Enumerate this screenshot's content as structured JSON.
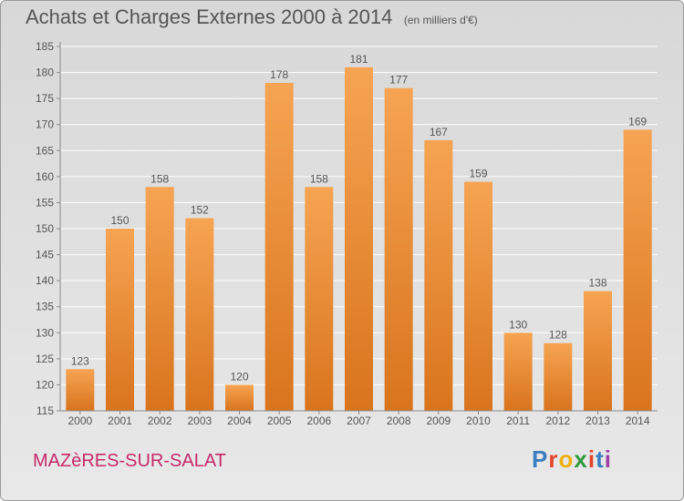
{
  "header": {
    "title": "Achats et Charges Externes 2000 à 2014",
    "unit": "(en milliers d'€)"
  },
  "footer": {
    "town": "MAZèRES-SUR-SALAT",
    "brand": "Proxiti",
    "brand_colors": [
      "#3a7fc1",
      "#e2452b",
      "#f0b114",
      "#2f9a3f",
      "#e2452b",
      "#3a7fc1",
      "#9c3fa6"
    ]
  },
  "colors": {
    "bar_light": "#f6a452",
    "bar_dark": "#d9741d",
    "axis": "#8a8a8a",
    "grid": "#ffffff",
    "text": "#555555"
  },
  "chart_data": {
    "type": "bar",
    "title": "Achats et Charges Externes 2000 à 2014",
    "subtitle": "(en milliers d'€)",
    "xlabel": "",
    "ylabel": "",
    "categories": [
      "2000",
      "2001",
      "2002",
      "2003",
      "2004",
      "2005",
      "2006",
      "2007",
      "2008",
      "2009",
      "2010",
      "2011",
      "2012",
      "2013",
      "2014"
    ],
    "values": [
      123,
      150,
      158,
      152,
      120,
      178,
      158,
      181,
      177,
      167,
      159,
      130,
      128,
      138,
      169
    ],
    "ylim": [
      115,
      185
    ],
    "yticks": [
      115,
      120,
      125,
      130,
      135,
      140,
      145,
      150,
      155,
      160,
      165,
      170,
      175,
      180,
      185
    ],
    "grid": true,
    "legend": "none"
  }
}
